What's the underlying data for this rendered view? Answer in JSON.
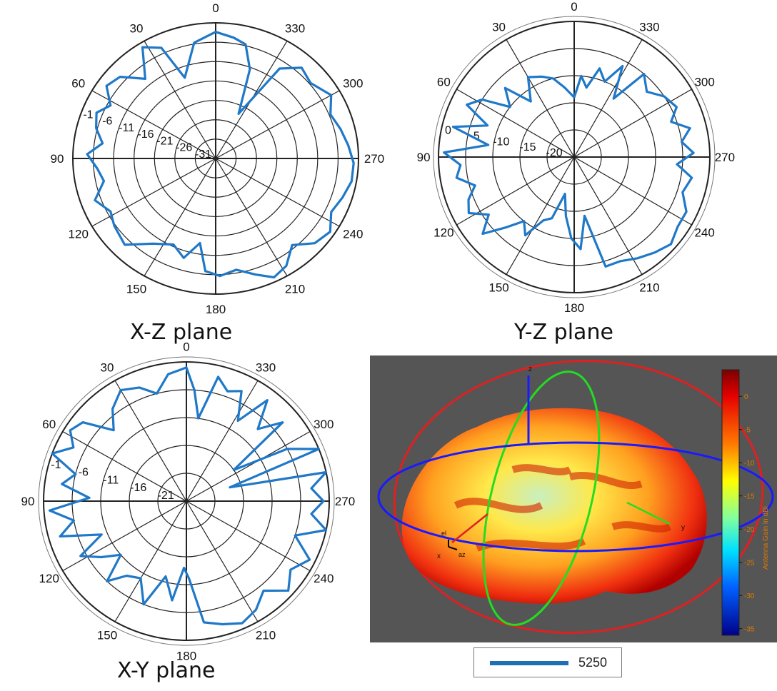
{
  "chart_data": [
    {
      "type": "polar",
      "title": "X-Z plane",
      "angle_ticks": [
        "0",
        "30",
        "60",
        "90",
        "120",
        "150",
        "180",
        "210",
        "240",
        "270",
        "300",
        "330"
      ],
      "radial_ticks": [
        "-1",
        "-6",
        "-11",
        "-16",
        "-21",
        "-26",
        "-31"
      ],
      "rlim": [
        -31,
        -1
      ],
      "theta_direction": "clockwise-from-top, labels increase counterclockwise",
      "series": [
        {
          "color": "#1f78c8",
          "points": [
            [
              0,
              -3
            ],
            [
              10,
              -5
            ],
            [
              20,
              -12
            ],
            [
              25,
              -4
            ],
            [
              32,
              -2
            ],
            [
              40,
              -8
            ],
            [
              48,
              -4
            ],
            [
              55,
              -3
            ],
            [
              62,
              -6
            ],
            [
              68,
              -4
            ],
            [
              75,
              -5
            ],
            [
              82,
              -7
            ],
            [
              88,
              -4
            ],
            [
              95,
              -6
            ],
            [
              102,
              -7
            ],
            [
              110,
              -4
            ],
            [
              118,
              -6
            ],
            [
              125,
              -5
            ],
            [
              135,
              -4
            ],
            [
              145,
              -8
            ],
            [
              155,
              -10
            ],
            [
              163,
              -8
            ],
            [
              170,
              -12
            ],
            [
              175,
              -6
            ],
            [
              182,
              -5
            ],
            [
              190,
              -6
            ],
            [
              198,
              -4
            ],
            [
              205,
              -2
            ],
            [
              212,
              -3
            ],
            [
              220,
              -6
            ],
            [
              228,
              -3
            ],
            [
              236,
              -2
            ],
            [
              244,
              -4
            ],
            [
              252,
              -3
            ],
            [
              260,
              -2
            ],
            [
              268,
              -2
            ],
            [
              276,
              -3
            ],
            [
              284,
              -4
            ],
            [
              292,
              -5
            ],
            [
              300,
              -3
            ],
            [
              310,
              -5
            ],
            [
              318,
              -4
            ],
            [
              326,
              -7
            ],
            [
              334,
              -20
            ],
            [
              340,
              -10
            ],
            [
              346,
              -5
            ],
            [
              352,
              -4
            ],
            [
              360,
              -3
            ]
          ]
        }
      ]
    },
    {
      "type": "polar",
      "title": "Y-Z plane",
      "angle_ticks": [
        "0",
        "30",
        "60",
        "90",
        "120",
        "150",
        "180",
        "210",
        "240",
        "270",
        "300",
        "330"
      ],
      "radial_ticks": [
        "0",
        "-5",
        "-10",
        "-15",
        "-20"
      ],
      "rlim": [
        -25,
        0
      ],
      "series": [
        {
          "color": "#1f78c8",
          "points": [
            [
              0,
              -14
            ],
            [
              8,
              -12
            ],
            [
              15,
              -10
            ],
            [
              22,
              -9
            ],
            [
              30,
              -8
            ],
            [
              38,
              -12
            ],
            [
              45,
              -7
            ],
            [
              52,
              -10
            ],
            [
              58,
              -5
            ],
            [
              64,
              -3
            ],
            [
              70,
              -8
            ],
            [
              76,
              -2
            ],
            [
              82,
              -9
            ],
            [
              88,
              -1
            ],
            [
              94,
              -4
            ],
            [
              100,
              -3
            ],
            [
              106,
              -6
            ],
            [
              112,
              -4
            ],
            [
              118,
              -3
            ],
            [
              124,
              -6
            ],
            [
              130,
              -3
            ],
            [
              136,
              -7
            ],
            [
              142,
              -10
            ],
            [
              148,
              -8
            ],
            [
              154,
              -12
            ],
            [
              160,
              -13
            ],
            [
              166,
              -18
            ],
            [
              172,
              -14
            ],
            [
              178,
              -10
            ],
            [
              184,
              -8
            ],
            [
              190,
              -14
            ],
            [
              196,
              -4
            ],
            [
              204,
              -4
            ],
            [
              212,
              -3
            ],
            [
              220,
              -2
            ],
            [
              228,
              -1
            ],
            [
              236,
              -2
            ],
            [
              244,
              -2
            ],
            [
              252,
              -4
            ],
            [
              260,
              -3
            ],
            [
              266,
              -6
            ],
            [
              272,
              -3
            ],
            [
              278,
              -5
            ],
            [
              284,
              -3
            ],
            [
              290,
              -6
            ],
            [
              296,
              -4
            ],
            [
              304,
              -5
            ],
            [
              312,
              -7
            ],
            [
              320,
              -5
            ],
            [
              326,
              -12
            ],
            [
              332,
              -6
            ],
            [
              338,
              -10
            ],
            [
              344,
              -8
            ],
            [
              350,
              -12
            ],
            [
              355,
              -10
            ],
            [
              360,
              -14
            ]
          ]
        }
      ]
    },
    {
      "type": "polar",
      "title": "X-Y plane",
      "angle_ticks": [
        "0",
        "30",
        "60",
        "90",
        "120",
        "150",
        "180",
        "210",
        "240",
        "270",
        "300",
        "330"
      ],
      "radial_ticks": [
        "-1",
        "-6",
        "-11",
        "-16",
        "-21"
      ],
      "rlim": [
        -26,
        -1
      ],
      "series": [
        {
          "color": "#1f78c8",
          "points": [
            [
              0,
              -2
            ],
            [
              8,
              -3
            ],
            [
              15,
              -6
            ],
            [
              22,
              -4
            ],
            [
              30,
              -3
            ],
            [
              38,
              -5
            ],
            [
              45,
              -8
            ],
            [
              52,
              -3
            ],
            [
              58,
              -2
            ],
            [
              64,
              -4
            ],
            [
              70,
              -1
            ],
            [
              76,
              -6
            ],
            [
              82,
              -4
            ],
            [
              88,
              -9
            ],
            [
              94,
              -2
            ],
            [
              100,
              -6
            ],
            [
              106,
              -3
            ],
            [
              112,
              -10
            ],
            [
              118,
              -5
            ],
            [
              124,
              -8
            ],
            [
              130,
              -11
            ],
            [
              136,
              -6
            ],
            [
              142,
              -9
            ],
            [
              150,
              -10
            ],
            [
              158,
              -6
            ],
            [
              165,
              -12
            ],
            [
              172,
              -8
            ],
            [
              178,
              -14
            ],
            [
              182,
              -12
            ],
            [
              188,
              -4
            ],
            [
              196,
              -3
            ],
            [
              204,
              -2
            ],
            [
              212,
              -3
            ],
            [
              220,
              -5
            ],
            [
              228,
              -2
            ],
            [
              236,
              -4
            ],
            [
              244,
              -2
            ],
            [
              252,
              -6
            ],
            [
              258,
              -1
            ],
            [
              264,
              -4
            ],
            [
              270,
              -2
            ],
            [
              276,
              -4
            ],
            [
              282,
              -1
            ],
            [
              288,
              -18
            ],
            [
              292,
              -1
            ],
            [
              298,
              -6
            ],
            [
              304,
              -16
            ],
            [
              310,
              -4
            ],
            [
              316,
              -8
            ],
            [
              322,
              -3
            ],
            [
              328,
              -9
            ],
            [
              334,
              -4
            ],
            [
              340,
              -5
            ],
            [
              346,
              -3
            ],
            [
              352,
              -11
            ],
            [
              356,
              -6
            ],
            [
              360,
              -2
            ]
          ]
        }
      ]
    },
    {
      "type": "surface-3d",
      "colorbar_label": "Antenna Gain in dBi",
      "colorbar_ticks": [
        "0",
        "-5",
        "-10",
        "-15",
        "-20",
        "-25",
        "-30",
        "-35"
      ],
      "clim": [
        -36,
        4
      ],
      "axis_labels": [
        "x",
        "y",
        "z",
        "az",
        "el"
      ],
      "legend": "5250",
      "colors": {
        "background": "#555555",
        "az_ring": "#1a1aff",
        "el_ring": "#e02020",
        "yz_ring": "#22cc22"
      }
    }
  ]
}
